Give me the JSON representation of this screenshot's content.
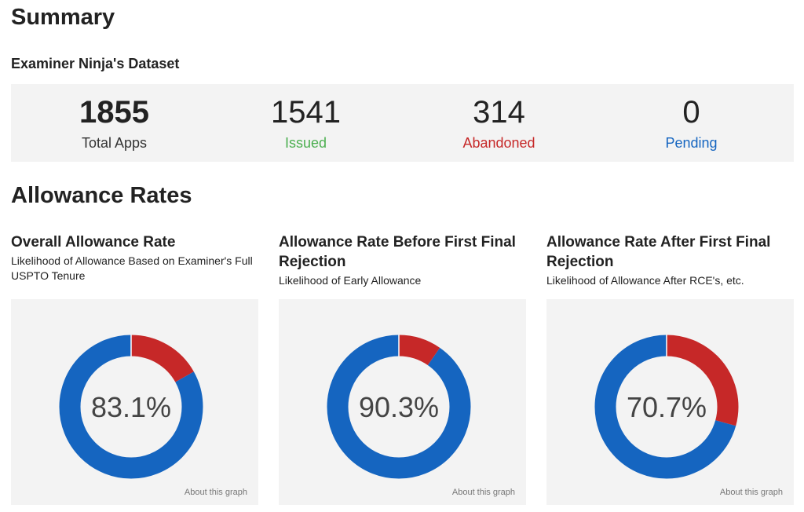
{
  "header": {
    "title": "Summary",
    "dataset_title": "Examiner Ninja's Dataset"
  },
  "stats": [
    {
      "value": "1855",
      "label": "Total Apps",
      "color": "#333333"
    },
    {
      "value": "1541",
      "label": "Issued",
      "color": "#4caf50"
    },
    {
      "value": "314",
      "label": "Abandoned",
      "color": "#c62828"
    },
    {
      "value": "0",
      "label": "Pending",
      "color": "#1565c0"
    }
  ],
  "section_title": "Allowance Rates",
  "about_label": "About this graph",
  "colors": {
    "allowed": "#1565c0",
    "not_allowed": "#c62828",
    "card_bg": "#f3f3f3"
  },
  "chart_data": [
    {
      "type": "pie",
      "title": "Overall Allowance Rate",
      "subtitle": "Likelihood of Allowance Based on Examiner's Full USPTO Tenure",
      "center_label": "83.1%",
      "slices": [
        {
          "value": 83.1,
          "color": "#1565c0"
        },
        {
          "value": 16.9,
          "color": "#c62828"
        }
      ]
    },
    {
      "type": "pie",
      "title": "Allowance Rate Before First Final Rejection",
      "subtitle": "Likelihood of Early Allowance",
      "center_label": "90.3%",
      "slices": [
        {
          "value": 90.3,
          "color": "#1565c0"
        },
        {
          "value": 9.7,
          "color": "#c62828"
        }
      ]
    },
    {
      "type": "pie",
      "title": "Allowance Rate After First Final Rejection",
      "subtitle": "Likelihood of Allowance After RCE's, etc.",
      "center_label": "70.7%",
      "slices": [
        {
          "value": 70.7,
          "color": "#1565c0"
        },
        {
          "value": 29.3,
          "color": "#c62828"
        }
      ]
    }
  ]
}
